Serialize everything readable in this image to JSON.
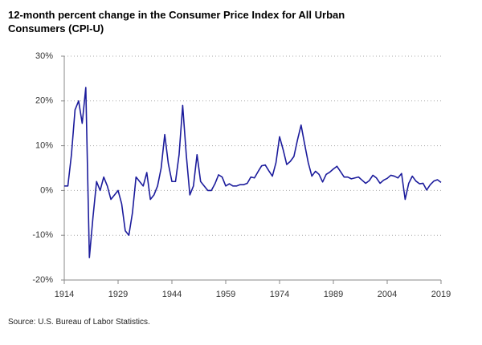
{
  "chart_data": {
    "type": "line",
    "title": "12-month percent change in the Consumer Price Index for All Urban Consumers (CPI-U)",
    "source": "Source: U.S. Bureau of Labor Statistics.",
    "color": "#1c1c9c",
    "x": [
      1914,
      1915,
      1916,
      1917,
      1918,
      1919,
      1920,
      1921,
      1922,
      1923,
      1924,
      1925,
      1926,
      1927,
      1928,
      1929,
      1930,
      1931,
      1932,
      1933,
      1934,
      1935,
      1936,
      1937,
      1938,
      1939,
      1940,
      1941,
      1942,
      1943,
      1944,
      1945,
      1946,
      1947,
      1948,
      1949,
      1950,
      1951,
      1952,
      1953,
      1954,
      1955,
      1956,
      1957,
      1958,
      1959,
      1960,
      1961,
      1962,
      1963,
      1964,
      1965,
      1966,
      1967,
      1968,
      1969,
      1970,
      1971,
      1972,
      1973,
      1974,
      1975,
      1976,
      1977,
      1978,
      1979,
      1980,
      1981,
      1982,
      1983,
      1984,
      1985,
      1986,
      1987,
      1988,
      1989,
      1990,
      1991,
      1992,
      1993,
      1994,
      1995,
      1996,
      1997,
      1998,
      1999,
      2000,
      2001,
      2002,
      2003,
      2004,
      2005,
      2006,
      2007,
      2008,
      2009,
      2010,
      2011,
      2012,
      2013,
      2014,
      2015,
      2016,
      2017,
      2018,
      2019
    ],
    "values": [
      1,
      1,
      8,
      18,
      20,
      15,
      23,
      -15,
      -6,
      2,
      0,
      3,
      1,
      -2,
      -1,
      0,
      -3,
      -9,
      -10,
      -5,
      3,
      2,
      1,
      4,
      -2,
      -1,
      1,
      5,
      12.5,
      6,
      2,
      2,
      8,
      19,
      8,
      -1,
      1,
      8,
      2,
      1,
      0,
      0,
      1.5,
      3.5,
      3,
      1,
      1.5,
      1,
      1,
      1.3,
      1.3,
      1.6,
      3,
      2.8,
      4.2,
      5.5,
      5.7,
      4.4,
      3.2,
      6.2,
      12,
      9.1,
      5.8,
      6.5,
      7.6,
      11.3,
      14.6,
      10.3,
      6.2,
      3.2,
      4.3,
      3.6,
      1.9,
      3.6,
      4.1,
      4.8,
      5.4,
      4.2,
      3,
      3,
      2.6,
      2.8,
      3,
      2.3,
      1.6,
      2.2,
      3.4,
      2.8,
      1.6,
      2.3,
      2.7,
      3.4,
      3.2,
      2.8,
      3.8,
      -2,
      1.6,
      3.2,
      2.1,
      1.5,
      1.6,
      0.1,
      1.3,
      2.1,
      2.4,
      1.8
    ],
    "xlim": [
      1914,
      2019
    ],
    "xticks": [
      1914,
      1929,
      1944,
      1959,
      1974,
      1989,
      2004,
      2019
    ],
    "ylim": [
      -20,
      30
    ],
    "yticks": [
      {
        "value": -20,
        "label": "-20%"
      },
      {
        "value": -10,
        "label": "-10%"
      },
      {
        "value": 0,
        "label": "0%"
      },
      {
        "value": 10,
        "label": "10%"
      },
      {
        "value": 20,
        "label": "20%"
      },
      {
        "value": 30,
        "label": "30%"
      }
    ],
    "grid": true
  }
}
